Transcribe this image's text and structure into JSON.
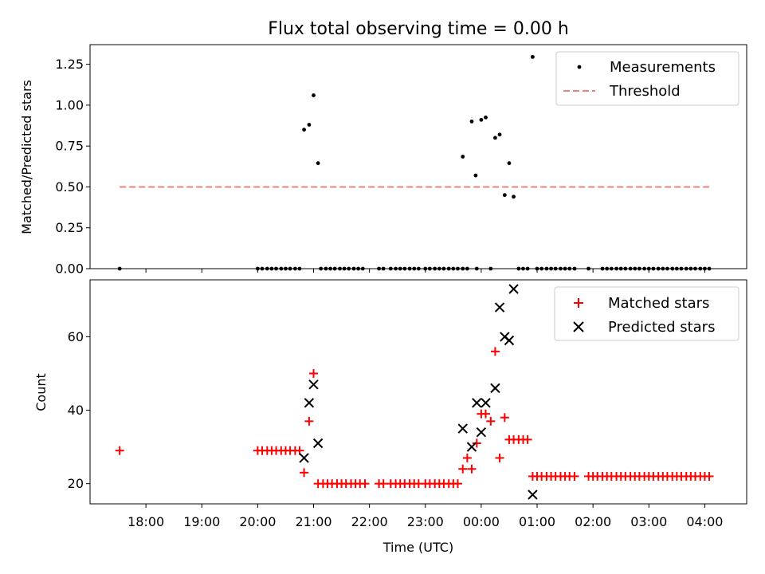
{
  "chart_data": [
    {
      "type": "scatter",
      "title": "Flux total observing time = 0.00 h",
      "xlabel": "",
      "ylabel": "Matched/Predicted stars",
      "ylim": [
        0,
        1.37
      ],
      "xlim": [
        17.0,
        28.75
      ],
      "yticks": [
        0.0,
        0.25,
        0.5,
        0.75,
        1.0,
        1.25
      ],
      "ytick_labels": [
        "0.00",
        "0.25",
        "0.50",
        "0.75",
        "1.00",
        "1.25"
      ],
      "legend_position": "top-right",
      "series": [
        {
          "name": "Measurements",
          "marker": "dot",
          "color": "#000000",
          "x": [
            17.53,
            20.0,
            20.08,
            20.17,
            20.25,
            20.33,
            20.42,
            20.5,
            20.58,
            20.67,
            20.75,
            20.83,
            20.92,
            21.0,
            21.08,
            21.13,
            21.22,
            21.3,
            21.38,
            21.47,
            21.55,
            21.63,
            21.72,
            21.8,
            21.88,
            22.17,
            22.25,
            22.38,
            22.47,
            22.55,
            22.63,
            22.72,
            22.8,
            22.88,
            23.0,
            23.08,
            23.17,
            23.25,
            23.33,
            23.42,
            23.5,
            23.58,
            23.67,
            23.75,
            23.67,
            23.83,
            23.9,
            24.0,
            24.08,
            24.25,
            24.33,
            24.42,
            24.5,
            24.58,
            23.92,
            24.17,
            24.67,
            24.75,
            24.83,
            24.92,
            25.0,
            25.08,
            25.17,
            25.25,
            25.33,
            25.42,
            25.5,
            25.58,
            25.67,
            25.92,
            26.17,
            26.25,
            26.33,
            26.42,
            26.5,
            26.58,
            26.67,
            26.75,
            26.83,
            26.92,
            27.0,
            27.08,
            27.17,
            27.25,
            27.33,
            27.42,
            27.5,
            27.58,
            27.67,
            27.75,
            27.83,
            27.92,
            28.0,
            28.08
          ],
          "y": [
            0.0,
            0.0,
            0.0,
            0.0,
            0.0,
            0.0,
            0.0,
            0.0,
            0.0,
            0.0,
            0.0,
            0.85,
            0.88,
            1.06,
            0.645,
            0.0,
            0.0,
            0.0,
            0.0,
            0.0,
            0.0,
            0.0,
            0.0,
            0.0,
            0.0,
            0.0,
            0.0,
            0.0,
            0.0,
            0.0,
            0.0,
            0.0,
            0.0,
            0.0,
            0.0,
            0.0,
            0.0,
            0.0,
            0.0,
            0.0,
            0.0,
            0.0,
            0.0,
            0.0,
            0.685,
            0.9,
            0.57,
            0.91,
            0.925,
            0.8,
            0.82,
            0.45,
            0.645,
            0.44,
            0.0,
            0.0,
            0.0,
            0.0,
            0.0,
            1.295,
            0.0,
            0.0,
            0.0,
            0.0,
            0.0,
            0.0,
            0.0,
            0.0,
            0.0,
            0.0,
            0.0,
            0.0,
            0.0,
            0.0,
            0.0,
            0.0,
            0.0,
            0.0,
            0.0,
            0.0,
            0.0,
            0.0,
            0.0,
            0.0,
            0.0,
            0.0,
            0.0,
            0.0,
            0.0,
            0.0,
            0.0,
            0.0,
            0.0,
            0.0
          ]
        },
        {
          "name": "Threshold",
          "marker": "dashed-line",
          "color": "#f08080",
          "x": [
            17.53,
            28.08
          ],
          "y": [
            0.5,
            0.5
          ]
        }
      ]
    },
    {
      "type": "scatter",
      "title": "",
      "xlabel": "Time (UTC)",
      "ylabel": "Count",
      "ylim": [
        14.5,
        75.5
      ],
      "xlim": [
        17.0,
        28.75
      ],
      "yticks": [
        20,
        40,
        60
      ],
      "ytick_labels": [
        "20",
        "40",
        "60"
      ],
      "xticks": [
        18,
        19,
        20,
        21,
        22,
        23,
        24,
        25,
        26,
        27,
        28
      ],
      "xtick_labels": [
        "18:00",
        "19:00",
        "20:00",
        "21:00",
        "22:00",
        "23:00",
        "00:00",
        "01:00",
        "02:00",
        "03:00",
        "04:00"
      ],
      "legend_position": "top-right",
      "series": [
        {
          "name": "Matched stars",
          "marker": "plus",
          "color": "#ff0000",
          "x": [
            17.53,
            20.0,
            20.08,
            20.17,
            20.25,
            20.33,
            20.42,
            20.5,
            20.58,
            20.67,
            20.75,
            20.83,
            20.92,
            21.0,
            21.08,
            21.17,
            21.25,
            21.33,
            21.42,
            21.5,
            21.58,
            21.67,
            21.75,
            21.83,
            21.92,
            22.17,
            22.25,
            22.38,
            22.47,
            22.55,
            22.63,
            22.72,
            22.8,
            22.88,
            23.0,
            23.08,
            23.17,
            23.25,
            23.33,
            23.42,
            23.5,
            23.58,
            23.67,
            23.75,
            23.83,
            23.92,
            24.0,
            24.08,
            24.17,
            24.25,
            24.33,
            24.42,
            24.5,
            24.58,
            24.67,
            24.75,
            24.83,
            24.92,
            25.0,
            25.08,
            25.17,
            25.25,
            25.33,
            25.42,
            25.5,
            25.58,
            25.67,
            25.92,
            26.0,
            26.08,
            26.17,
            26.25,
            26.33,
            26.42,
            26.5,
            26.58,
            26.67,
            26.75,
            26.83,
            26.92,
            27.0,
            27.08,
            27.17,
            27.25,
            27.33,
            27.42,
            27.5,
            27.58,
            27.67,
            27.75,
            27.83,
            27.92,
            28.0,
            28.08
          ],
          "y": [
            29,
            29,
            29,
            29,
            29,
            29,
            29,
            29,
            29,
            29,
            29,
            23,
            37,
            50,
            20,
            20,
            20,
            20,
            20,
            20,
            20,
            20,
            20,
            20,
            20,
            20,
            20,
            20,
            20,
            20,
            20,
            20,
            20,
            20,
            20,
            20,
            20,
            20,
            20,
            20,
            20,
            20,
            24,
            27,
            24,
            31,
            39,
            39,
            37,
            56,
            27,
            38,
            32,
            32,
            32,
            32,
            32,
            22,
            22,
            22,
            22,
            22,
            22,
            22,
            22,
            22,
            22,
            22,
            22,
            22,
            22,
            22,
            22,
            22,
            22,
            22,
            22,
            22,
            22,
            22,
            22,
            22,
            22,
            22,
            22,
            22,
            22,
            22,
            22,
            22,
            22,
            22,
            22,
            22
          ]
        },
        {
          "name": "Predicted stars",
          "marker": "x",
          "color": "#000000",
          "x": [
            20.83,
            20.92,
            21.0,
            21.08,
            23.67,
            23.83,
            23.92,
            24.0,
            24.08,
            24.25,
            24.33,
            24.42,
            24.5,
            24.58,
            24.92
          ],
          "y": [
            27,
            42,
            47,
            31,
            35,
            30,
            42,
            34,
            42,
            46,
            68,
            60,
            59,
            73,
            17
          ]
        }
      ]
    }
  ]
}
